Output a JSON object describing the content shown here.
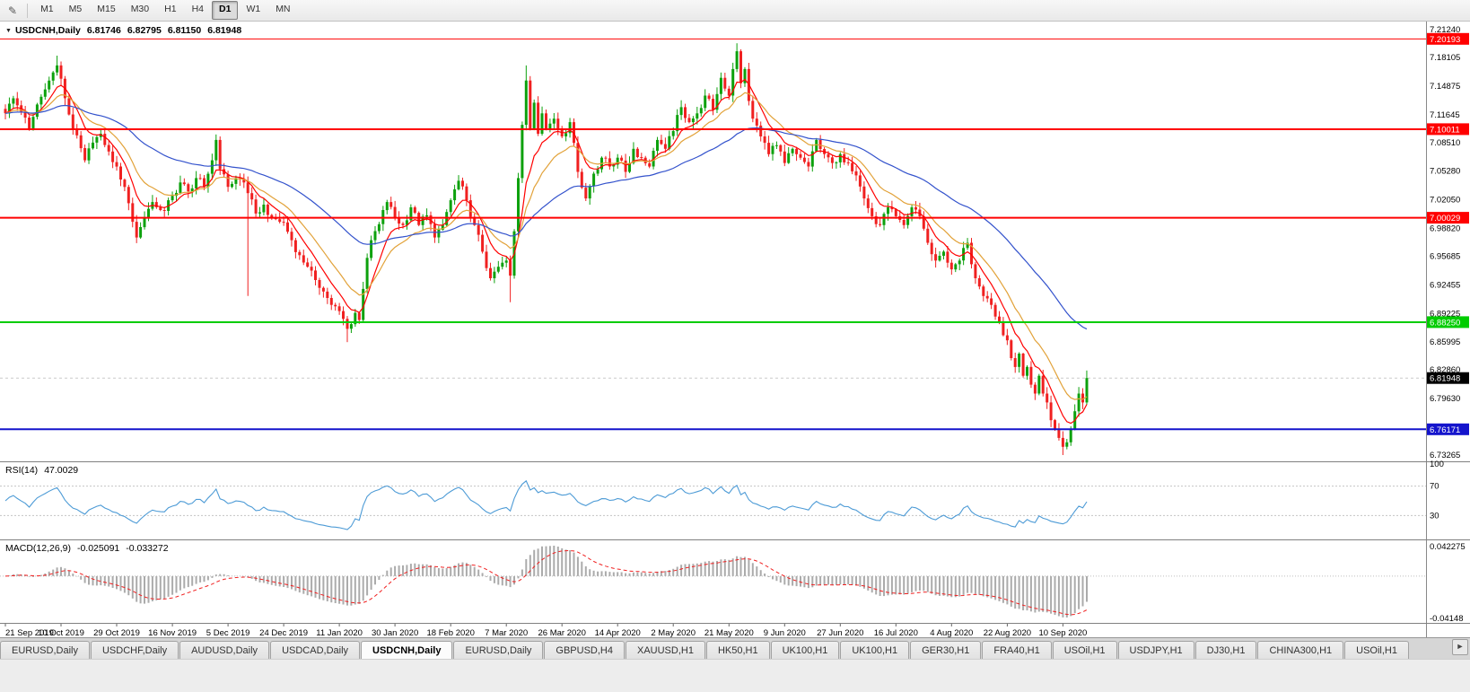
{
  "toolbar": {
    "draw_icon": "✎",
    "timeframes": [
      "M1",
      "M5",
      "M15",
      "M30",
      "H1",
      "H4",
      "D1",
      "W1",
      "MN"
    ],
    "active_timeframe": "D1"
  },
  "main_chart": {
    "collapse_icon": "▼",
    "symbol_title": "USDCNH,Daily",
    "open": "6.81746",
    "high": "6.82795",
    "low": "6.81150",
    "close": "6.81948"
  },
  "rsi_panel": {
    "label": "RSI(14)",
    "value": "47.0029"
  },
  "macd_panel": {
    "label": "MACD(12,26,9)",
    "main_value": "-0.025091",
    "signal_value": "-0.033272"
  },
  "tab_bar": {
    "tabs": [
      "EURUSD,Daily",
      "USDCHF,Daily",
      "AUDUSD,Daily",
      "USDCAD,Daily",
      "USDCNH,Daily",
      "EURUSD,Daily",
      "GBPUSD,H4",
      "XAUUSD,H1",
      "HK50,H1",
      "UK100,H1",
      "UK100,H1",
      "GER30,H1",
      "FRA40,H1",
      "USOil,H1",
      "USDJPY,H1",
      "DJ30,H1",
      "CHINA300,H1",
      "USOil,H1"
    ],
    "active_index": 4,
    "scroll_icon": "►"
  },
  "chart_data": {
    "type": "candlestick",
    "symbol": "USDCNH",
    "timeframe": "Daily",
    "last_quote": {
      "open": 6.81746,
      "high": 6.82795,
      "low": 6.8115,
      "close": 6.81948
    },
    "bars_total": 273,
    "bars_per_label": 14,
    "x_labels": [
      "21 Sep 2019",
      "10 Oct 2019",
      "29 Oct 2019",
      "16 Nov 2019",
      "5 Dec 2019",
      "24 Dec 2019",
      "11 Jan 2020",
      "30 Jan 2020",
      "18 Feb 2020",
      "7 Mar 2020",
      "26 Mar 2020",
      "14 Apr 2020",
      "2 May 2020",
      "21 May 2020",
      "9 Jun 2020",
      "27 Jun 2020",
      "16 Jul 2020",
      "4 Aug 2020",
      "22 Aug 2020",
      "10 Sep 2020"
    ],
    "y_ticks": [
      "7.21240",
      "7.18105",
      "7.14875",
      "7.11645",
      "7.08510",
      "7.05280",
      "7.02050",
      "6.98820",
      "6.95685",
      "6.92455",
      "6.89225",
      "6.85995",
      "6.82860",
      "6.79630",
      "6.76400",
      "6.73265"
    ],
    "price_range": {
      "top": 7.2124,
      "bottom": 6.73265
    },
    "up_color": "#0da10d",
    "down_color": "#f02020",
    "close_anchors": [
      [
        0,
        7.118
      ],
      [
        2,
        7.135
      ],
      [
        4,
        7.12
      ],
      [
        6,
        7.1
      ],
      [
        8,
        7.128
      ],
      [
        10,
        7.145
      ],
      [
        13,
        7.172
      ],
      [
        15,
        7.135
      ],
      [
        17,
        7.1
      ],
      [
        20,
        7.065
      ],
      [
        22,
        7.085
      ],
      [
        24,
        7.095
      ],
      [
        26,
        7.075
      ],
      [
        28,
        7.058
      ],
      [
        30,
        7.035
      ],
      [
        33,
        6.978
      ],
      [
        35,
        7.0
      ],
      [
        37,
        7.018
      ],
      [
        40,
        7.008
      ],
      [
        42,
        7.025
      ],
      [
        44,
        7.04
      ],
      [
        46,
        7.03
      ],
      [
        48,
        7.045
      ],
      [
        50,
        7.035
      ],
      [
        52,
        7.065
      ],
      [
        53,
        7.088
      ],
      [
        54,
        7.055
      ],
      [
        56,
        7.035
      ],
      [
        58,
        7.045
      ],
      [
        60,
        7.04
      ],
      [
        61,
        7.028
      ],
      [
        63,
        7.005
      ],
      [
        65,
        7.015
      ],
      [
        67,
        7.0
      ],
      [
        70,
        6.995
      ],
      [
        72,
        6.975
      ],
      [
        74,
        6.958
      ],
      [
        76,
        6.945
      ],
      [
        78,
        6.93
      ],
      [
        80,
        6.917
      ],
      [
        82,
        6.902
      ],
      [
        84,
        6.895
      ],
      [
        86,
        6.875
      ],
      [
        88,
        6.893
      ],
      [
        89,
        6.885
      ],
      [
        90,
        6.92
      ],
      [
        91,
        6.955
      ],
      [
        92,
        6.975
      ],
      [
        94,
        6.993
      ],
      [
        96,
        7.018
      ],
      [
        98,
        7.0
      ],
      [
        100,
        6.992
      ],
      [
        102,
        7.012
      ],
      [
        104,
        6.992
      ],
      [
        106,
        7.003
      ],
      [
        108,
        6.978
      ],
      [
        110,
        6.992
      ],
      [
        112,
        7.02
      ],
      [
        114,
        7.042
      ],
      [
        116,
        7.02
      ],
      [
        118,
        6.992
      ],
      [
        120,
        6.962
      ],
      [
        122,
        6.932
      ],
      [
        124,
        6.945
      ],
      [
        126,
        6.952
      ],
      [
        127,
        6.935
      ],
      [
        128,
        6.985
      ],
      [
        129,
        7.045
      ],
      [
        130,
        7.105
      ],
      [
        131,
        7.155
      ],
      [
        132,
        7.1
      ],
      [
        133,
        7.13
      ],
      [
        134,
        7.095
      ],
      [
        135,
        7.118
      ],
      [
        136,
        7.1
      ],
      [
        138,
        7.112
      ],
      [
        140,
        7.092
      ],
      [
        142,
        7.108
      ],
      [
        144,
        7.052
      ],
      [
        146,
        7.022
      ],
      [
        148,
        7.05
      ],
      [
        150,
        7.068
      ],
      [
        152,
        7.058
      ],
      [
        154,
        7.068
      ],
      [
        156,
        7.052
      ],
      [
        158,
        7.078
      ],
      [
        160,
        7.068
      ],
      [
        162,
        7.058
      ],
      [
        164,
        7.088
      ],
      [
        166,
        7.078
      ],
      [
        168,
        7.098
      ],
      [
        170,
        7.125
      ],
      [
        172,
        7.108
      ],
      [
        174,
        7.118
      ],
      [
        176,
        7.138
      ],
      [
        178,
        7.122
      ],
      [
        180,
        7.158
      ],
      [
        182,
        7.138
      ],
      [
        183,
        7.168
      ],
      [
        184,
        7.188
      ],
      [
        185,
        7.152
      ],
      [
        186,
        7.168
      ],
      [
        187,
        7.132
      ],
      [
        188,
        7.112
      ],
      [
        190,
        7.092
      ],
      [
        192,
        7.072
      ],
      [
        194,
        7.082
      ],
      [
        196,
        7.062
      ],
      [
        198,
        7.078
      ],
      [
        200,
        7.068
      ],
      [
        202,
        7.058
      ],
      [
        204,
        7.088
      ],
      [
        206,
        7.072
      ],
      [
        208,
        7.062
      ],
      [
        210,
        7.072
      ],
      [
        212,
        7.062
      ],
      [
        214,
        7.048
      ],
      [
        216,
        7.022
      ],
      [
        218,
        7.002
      ],
      [
        220,
        6.992
      ],
      [
        222,
        7.012
      ],
      [
        224,
        7.002
      ],
      [
        226,
        6.992
      ],
      [
        228,
        7.012
      ],
      [
        230,
        7.002
      ],
      [
        232,
        6.972
      ],
      [
        234,
        6.952
      ],
      [
        236,
        6.962
      ],
      [
        238,
        6.942
      ],
      [
        240,
        6.952
      ],
      [
        242,
        6.972
      ],
      [
        244,
        6.932
      ],
      [
        246,
        6.912
      ],
      [
        248,
        6.902
      ],
      [
        250,
        6.882
      ],
      [
        252,
        6.862
      ],
      [
        253,
        6.842
      ],
      [
        254,
        6.832
      ],
      [
        255,
        6.847
      ],
      [
        256,
        6.822
      ],
      [
        257,
        6.832
      ],
      [
        258,
        6.812
      ],
      [
        259,
        6.802
      ],
      [
        260,
        6.822
      ],
      [
        261,
        6.802
      ],
      [
        262,
        6.792
      ],
      [
        263,
        6.772
      ],
      [
        264,
        6.762
      ],
      [
        265,
        6.752
      ],
      [
        266,
        6.742
      ],
      [
        267,
        6.747
      ],
      [
        268,
        6.762
      ],
      [
        269,
        6.782
      ],
      [
        270,
        6.802
      ],
      [
        271,
        6.792
      ],
      [
        272,
        6.8195
      ]
    ],
    "wick_overrides": [
      [
        13,
        "high",
        7.183
      ],
      [
        61,
        "low",
        6.912
      ],
      [
        86,
        "low",
        6.86
      ],
      [
        127,
        "low",
        6.905
      ],
      [
        131,
        "high",
        7.172
      ],
      [
        184,
        "high",
        7.197
      ],
      [
        266,
        "low",
        6.7327
      ],
      [
        272,
        "high",
        6.82795
      ]
    ],
    "moving_averages": [
      {
        "period": 8,
        "color": "#ff0000"
      },
      {
        "period": 16,
        "color": "#e2a239"
      },
      {
        "period": 50,
        "color": "#3352cc"
      }
    ],
    "horizontal_lines": [
      {
        "price": 7.20193,
        "label": "7.20193",
        "color": "#ff0000",
        "width": 1
      },
      {
        "price": 7.10011,
        "label": "7.10011",
        "color": "#ff0000",
        "width": 2
      },
      {
        "price": 7.00029,
        "label": "7.00029",
        "color": "#ff0000",
        "width": 2
      },
      {
        "price": 6.8825,
        "label": "6.88250",
        "color": "#00cc00",
        "width": 2
      },
      {
        "price": 6.76171,
        "label": "6.76171",
        "color": "#1414cc",
        "width": 2
      }
    ],
    "bid_line": {
      "price": 6.81948,
      "label": "6.81948",
      "box_color": "#000000"
    },
    "rsi": {
      "period": 14,
      "current": "47.0029",
      "color": "#4d9bd6",
      "levels": [
        70,
        30
      ],
      "scale_labels": [
        {
          "v": 100,
          "t": "100"
        },
        {
          "v": 70,
          "t": "70"
        },
        {
          "v": 30,
          "t": "30"
        }
      ]
    },
    "macd": {
      "fast": 12,
      "slow": 26,
      "signal": 9,
      "current_main": "-0.025091",
      "current_signal": "-0.033272",
      "hist_color": "#ababab",
      "signal_color": "#f02020",
      "scale_top_label": "0.042275",
      "scale_bottom_label": "-0.04148"
    }
  }
}
